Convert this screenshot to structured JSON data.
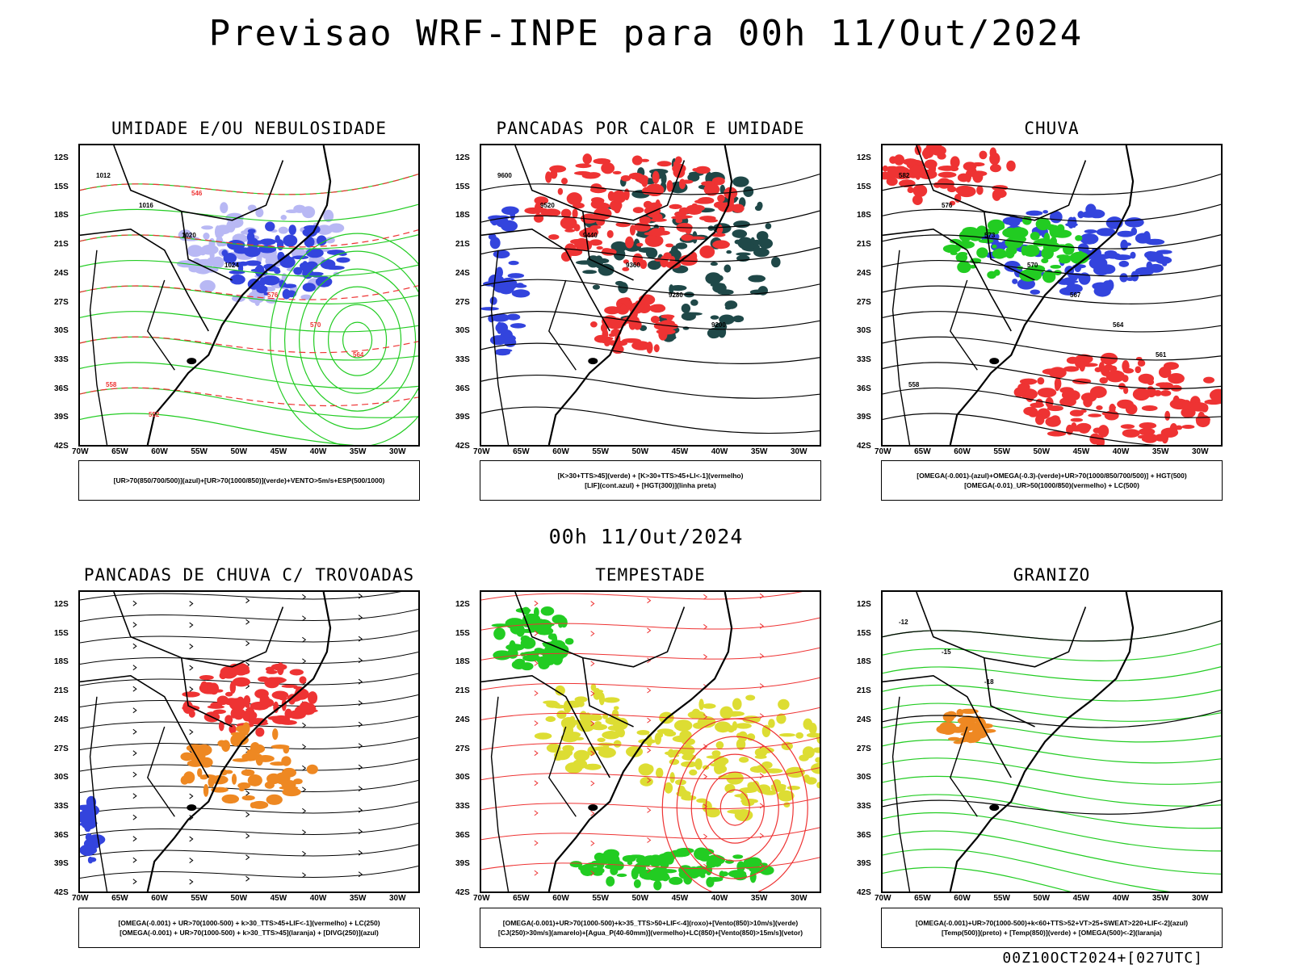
{
  "header": {
    "title": "Previsao WRF-INPE  para 00h 11/Out/2024"
  },
  "middle": {
    "title": "00h 11/Out/2024"
  },
  "footer": {
    "text": "00Z10OCT2024+[027UTC]"
  },
  "axes": {
    "lat_labels": [
      "12S",
      "15S",
      "18S",
      "21S",
      "24S",
      "27S",
      "30S",
      "33S",
      "36S",
      "39S",
      "42S"
    ],
    "lon_labels": [
      "70W",
      "65W",
      "60W",
      "55W",
      "50W",
      "45W",
      "40W",
      "35W",
      "30W"
    ]
  },
  "colors": {
    "blue": "#3344dd",
    "light_blue": "#b8b8f4",
    "green": "#22cc22",
    "red": "#ee3333",
    "orange": "#ee8822",
    "yellow": "#dddd33",
    "dark_teal": "#1f4848"
  },
  "panels": [
    {
      "id": "umidade",
      "title": "UMIDADE E/OU NEBULOSIDADE",
      "legend": [
        "[UR>70(850/700/500)](azul)+[UR>70(1000/850)](verde)+VENTO>5m/s+ESP(500/1000)"
      ],
      "contour_labels": [
        "1012",
        "1016",
        "1020",
        "1024",
        "576",
        "570",
        "564",
        "558",
        "552",
        "546"
      ]
    },
    {
      "id": "pancadas-calor",
      "title": "PANCADAS POR CALOR E UMIDADE",
      "legend": [
        "[K>30+TTS>45](verde) + [K>30+TTS>45+LI<-1](vermelho)",
        "[LIF](cont.azul) + [HGT(300)](linha preta)"
      ],
      "contour_labels": [
        "9600",
        "9520",
        "9440",
        "9360",
        "9280",
        "9200"
      ]
    },
    {
      "id": "chuva",
      "title": "CHUVA",
      "legend": [
        "[OMEGA(-0.001)-(azul)+OMEGA(-0.3)-(verde)+UR>70(1000/850/700/500)] + HGT(500)",
        "[OMEGA(-0.01)_UR>50(1000/850)(vermelho) + LC(500)"
      ],
      "contour_labels": [
        "582",
        "576",
        "573",
        "570",
        "567",
        "564",
        "561",
        "558"
      ]
    },
    {
      "id": "pancadas-trovoadas",
      "title": "PANCADAS DE CHUVA C/ TROVOADAS",
      "legend": [
        "[OMEGA(-0.001) + UR>70(1000-500) + k>30_TTS>45+LIF<-1](vermelho) + LC(250)",
        "[OMEGA(-0.001) + UR>70(1000-500) + k>30_TTS>45](laranja) + [DIVG(250)](azul)"
      ],
      "contour_labels": []
    },
    {
      "id": "tempestade",
      "title": "TEMPESTADE",
      "legend": [
        "[OMEGA(-0.001)+UR>70(1000-500)+k>35_TTS>50+LIF<-4](roxo)+[Vento(850)>10m/s](verde)",
        "[CJ(250)>30m/s](amarelo)+[Agua_P(40-60mm)](vermelho)+LC(850)+[Vento(850)>15m/s](vetor)"
      ],
      "contour_labels": []
    },
    {
      "id": "granizo",
      "title": "GRANIZO",
      "legend": [
        "[OMEGA(-0.001)+UR>70(1000-500)+k<60+TTS>52+VT>25+SWEAT>220+LIF<-2](azul)",
        "[Temp(500)](preto) + [Temp(850)](verde) + [OMEGA(500)<-2](laranja)"
      ],
      "contour_labels": [
        "-12",
        "-15",
        "-18"
      ]
    }
  ]
}
